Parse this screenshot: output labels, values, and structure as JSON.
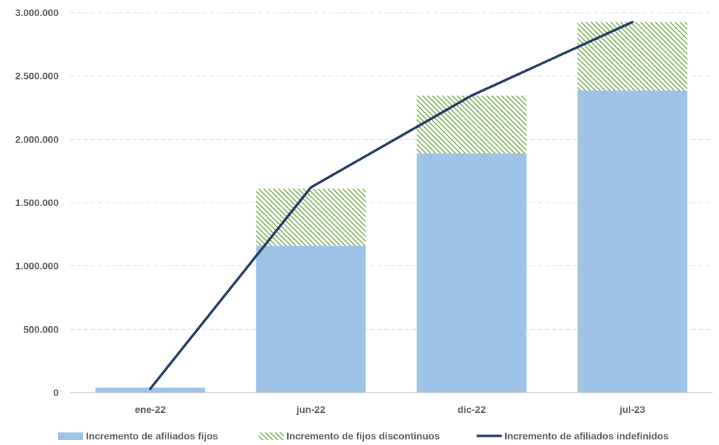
{
  "chart_data": {
    "type": "bar",
    "stacked": true,
    "categories": [
      "ene-22",
      "jun-22",
      "dic-22",
      "jul-23"
    ],
    "series": [
      {
        "name": "Incremento de afiliados fijos",
        "type": "bar",
        "values": [
          40000,
          1160000,
          1890000,
          2385000
        ],
        "color": "#9DC3E6"
      },
      {
        "name": "Incremento de fijos discontinuos",
        "type": "bar",
        "pattern": "diagonal-hatch",
        "values": [
          0,
          450000,
          455000,
          540000
        ],
        "color": "#70AD47"
      },
      {
        "name": "Incremento de afiliados indefinidos",
        "type": "line",
        "values": [
          30000,
          1620000,
          2345000,
          2925000
        ],
        "color": "#203864"
      }
    ],
    "ylim": [
      0,
      3000000
    ],
    "yticks": [
      {
        "value": 0,
        "label": "0"
      },
      {
        "value": 500000,
        "label": "500.000"
      },
      {
        "value": 1000000,
        "label": "1.000.000"
      },
      {
        "value": 1500000,
        "label": "1.500.000"
      },
      {
        "value": 2000000,
        "label": "2.000.000"
      },
      {
        "value": 2500000,
        "label": "2.500.000"
      },
      {
        "value": 3000000,
        "label": "3.000.000"
      }
    ],
    "grid": true,
    "legend_position": "bottom"
  }
}
